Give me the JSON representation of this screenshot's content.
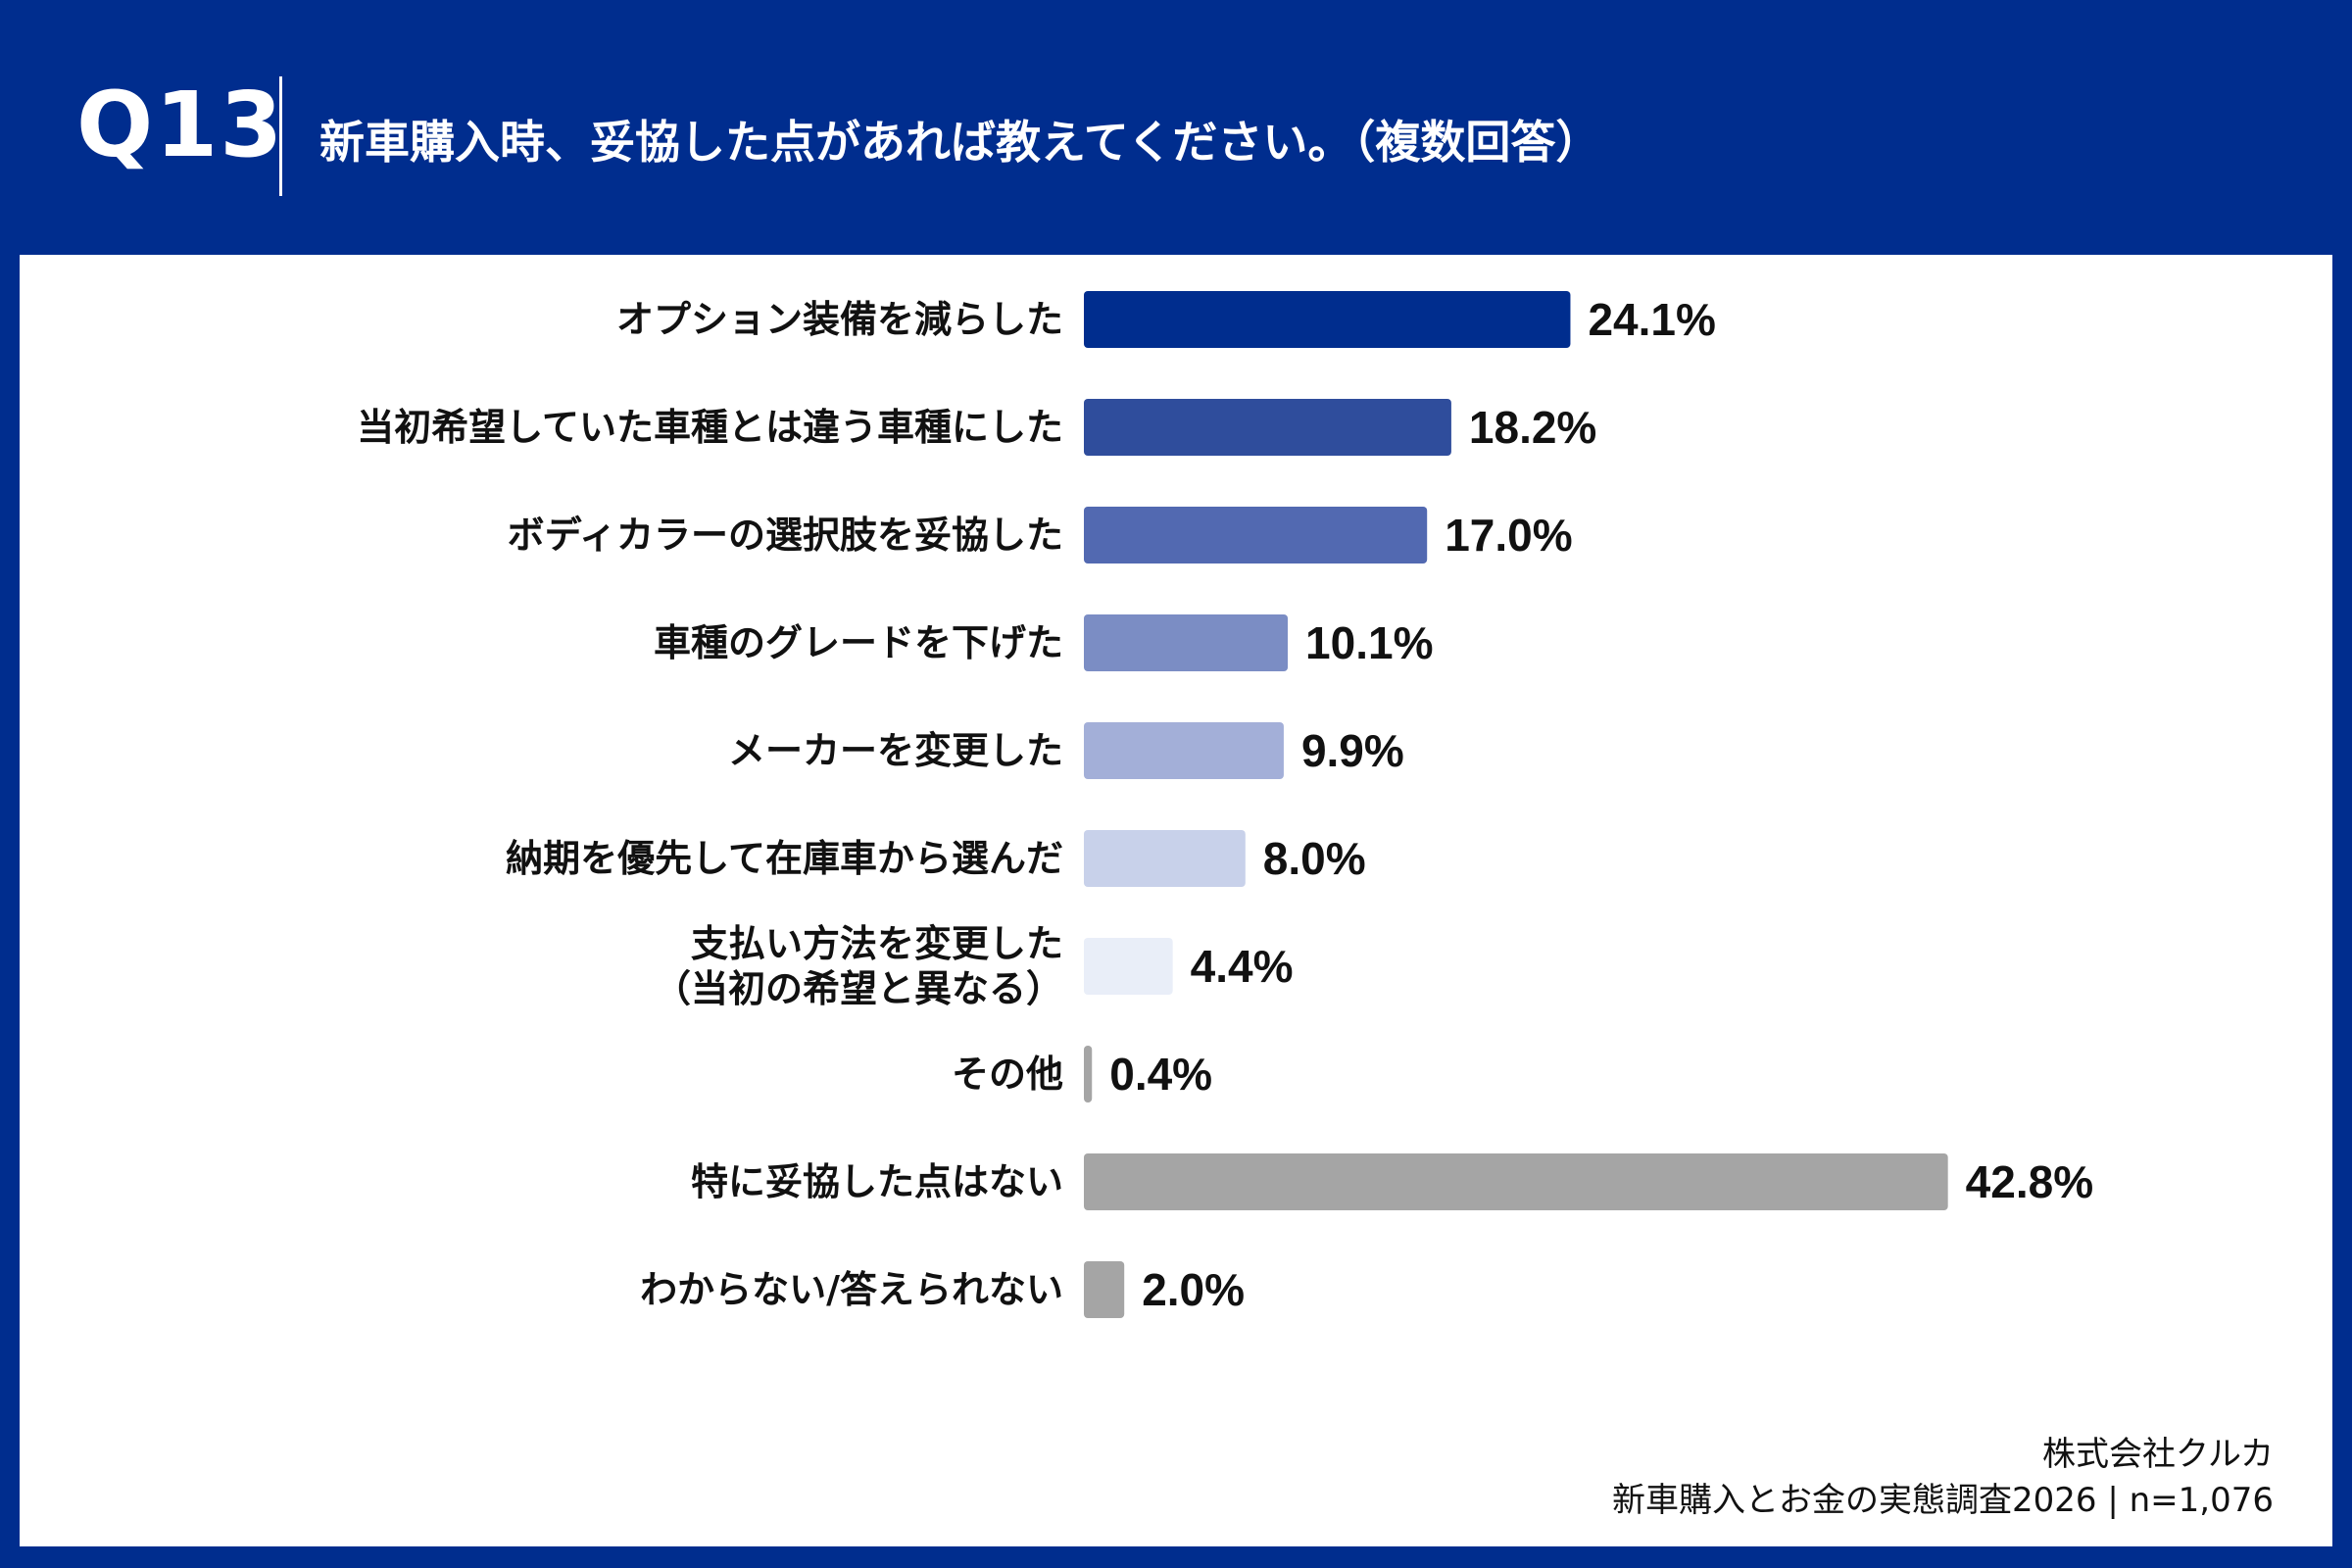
{
  "header": {
    "question_number": "Q13",
    "question_text": "新車購入時、妥協した点があれば教えてください。（複数回答）"
  },
  "chart_data": {
    "type": "bar",
    "orientation": "horizontal",
    "title": "新車購入時、妥協した点があれば教えてください。（複数回答）",
    "categories": [
      "オプション装備を減らした",
      "当初希望していた車種とは違う車種にした",
      "ボディカラーの選択肢を妥協した",
      "車種のグレードを下げた",
      "メーカーを変更した",
      "納期を優先して在庫車から選んだ",
      "支払い方法を変更した\n（当初の希望と異なる）",
      "その他",
      "特に妥協した点はない",
      "わからない/答えられない"
    ],
    "values": [
      24.1,
      18.2,
      17.0,
      10.1,
      9.9,
      8.0,
      4.4,
      0.4,
      42.8,
      2.0
    ],
    "value_labels": [
      "24.1%",
      "18.2%",
      "17.0%",
      "10.1%",
      "9.9%",
      "8.0%",
      "4.4%",
      "0.4%",
      "42.8%",
      "2.0%"
    ],
    "unit": "%",
    "xlim": [
      0,
      100
    ],
    "colors": [
      "#002d8e",
      "#2f4d9c",
      "#5269b1",
      "#7b8dc4",
      "#a3afd8",
      "#c8d1ea",
      "#e9eef8",
      "#a5a5a5",
      "#a5a5a5",
      "#a5a5a5"
    ],
    "grid": false,
    "legend": "none"
  },
  "footer": {
    "company": "株式会社クルカ",
    "source": "新車購入とお金の実態調査2026 | n=1,076"
  }
}
